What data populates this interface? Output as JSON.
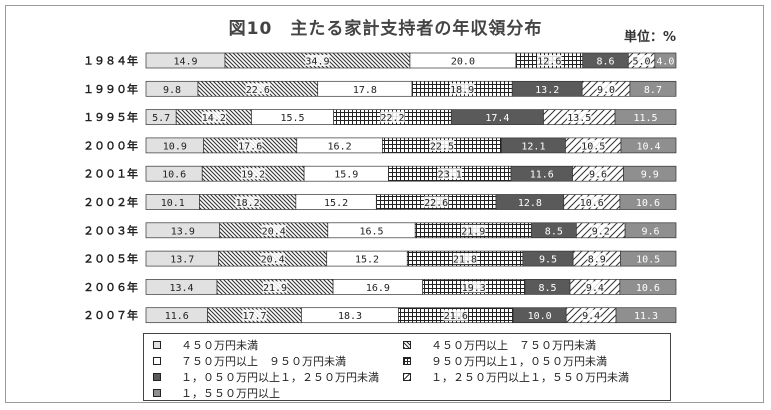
{
  "title": "図10　主たる家計支持者の年収領分布",
  "unit": "単位：%",
  "chart_data": {
    "type": "bar",
    "stacked": "100%",
    "orientation": "horizontal",
    "title": "図10　主たる家計支持者の年収領分布",
    "unit": "単位：%",
    "categories": [
      "１９８４年",
      "１９９０年",
      "１９９５年",
      "２０００年",
      "２００１年",
      "２００２年",
      "２００３年",
      "２００５年",
      "２００６年",
      "２００７年"
    ],
    "series": [
      {
        "name": "４５０万円未満",
        "pattern": "light-gray",
        "values": [
          14.9,
          9.8,
          5.7,
          10.9,
          10.6,
          10.1,
          13.9,
          13.7,
          13.4,
          11.6
        ],
        "labels": [
          "14.9",
          "9.8",
          "5.7",
          "10.9",
          "10.6",
          "10.1",
          "13.9",
          "13.7",
          "13.4",
          "11.6"
        ]
      },
      {
        "name": "４５０万円以上　７５０万円未満",
        "pattern": "diagonal-hatch",
        "values": [
          34.9,
          22.6,
          14.2,
          17.6,
          19.2,
          18.2,
          20.4,
          20.4,
          21.9,
          17.7
        ],
        "labels": [
          "34.9",
          "22.6",
          "14.2",
          "17.6",
          "19.2",
          "18.2",
          "20.4",
          "20.4",
          "21.9",
          "17.7"
        ]
      },
      {
        "name": "７５０万円以上　９５０万円未満",
        "pattern": "white",
        "values": [
          20.0,
          17.8,
          15.5,
          16.2,
          15.9,
          15.2,
          16.5,
          15.2,
          16.9,
          18.3
        ],
        "labels": [
          "20.0",
          "17.8",
          "15.5",
          "16.2",
          "15.9",
          "15.2",
          "16.5",
          "15.2",
          "16.9",
          "18.3"
        ]
      },
      {
        "name": "９５０万円以上１，０５０万円未満",
        "pattern": "grid",
        "values": [
          12.6,
          18.9,
          22.2,
          22.5,
          23.1,
          22.6,
          21.9,
          21.8,
          19.3,
          21.6
        ],
        "labels": [
          "12.6",
          "18.9",
          "22.2",
          "22.5",
          "23.1",
          "22.6",
          "21.9",
          "21.8",
          "19.3",
          "21.6"
        ]
      },
      {
        "name": "１，０５０万円以上１，２５０万円未満",
        "pattern": "dark-gray",
        "values": [
          8.6,
          13.2,
          17.4,
          12.1,
          11.6,
          12.8,
          8.5,
          9.5,
          8.5,
          10.0
        ],
        "labels": [
          "8.6",
          "13.2",
          "17.4",
          "12.1",
          "11.6",
          "12.8",
          "8.5",
          "9.5",
          "8.5",
          "10.0"
        ]
      },
      {
        "name": "１，２５０万円以上１，５５０万円未満",
        "pattern": "wide-diagonal",
        "values": [
          5.0,
          9.0,
          13.5,
          10.5,
          9.6,
          10.6,
          9.2,
          8.9,
          9.4,
          9.4
        ],
        "labels": [
          "5.0",
          "9.0",
          "13.5",
          "10.5",
          "9.6",
          "10.6",
          "9.2",
          "8.9",
          "9.4",
          "9.4"
        ]
      },
      {
        "name": "１，５５０万円以上",
        "pattern": "medium-gray",
        "values": [
          4.0,
          8.7,
          11.5,
          10.4,
          9.9,
          10.6,
          9.6,
          10.5,
          10.6,
          11.3
        ],
        "labels": [
          "4.0",
          "8.7",
          "11.5",
          "10.4",
          "9.9",
          "10.6",
          "9.6",
          "10.5",
          "10.6",
          "11.3"
        ]
      }
    ],
    "xlim": [
      0,
      100
    ],
    "legend_placement": "bottom",
    "grid": false
  },
  "legend": [
    {
      "label": "４５０万円未満"
    },
    {
      "label": "４５０万円以上　７５０万円未満"
    },
    {
      "label": "７５０万円以上　９５０万円未満"
    },
    {
      "label": "９５０万円以上１，０５０万円未満"
    },
    {
      "label": "１，０５０万円以上１，２５０万円未満"
    },
    {
      "label": "１，２５０万円以上１，５５０万円未満"
    },
    {
      "label": "１，５５０万円以上"
    }
  ]
}
